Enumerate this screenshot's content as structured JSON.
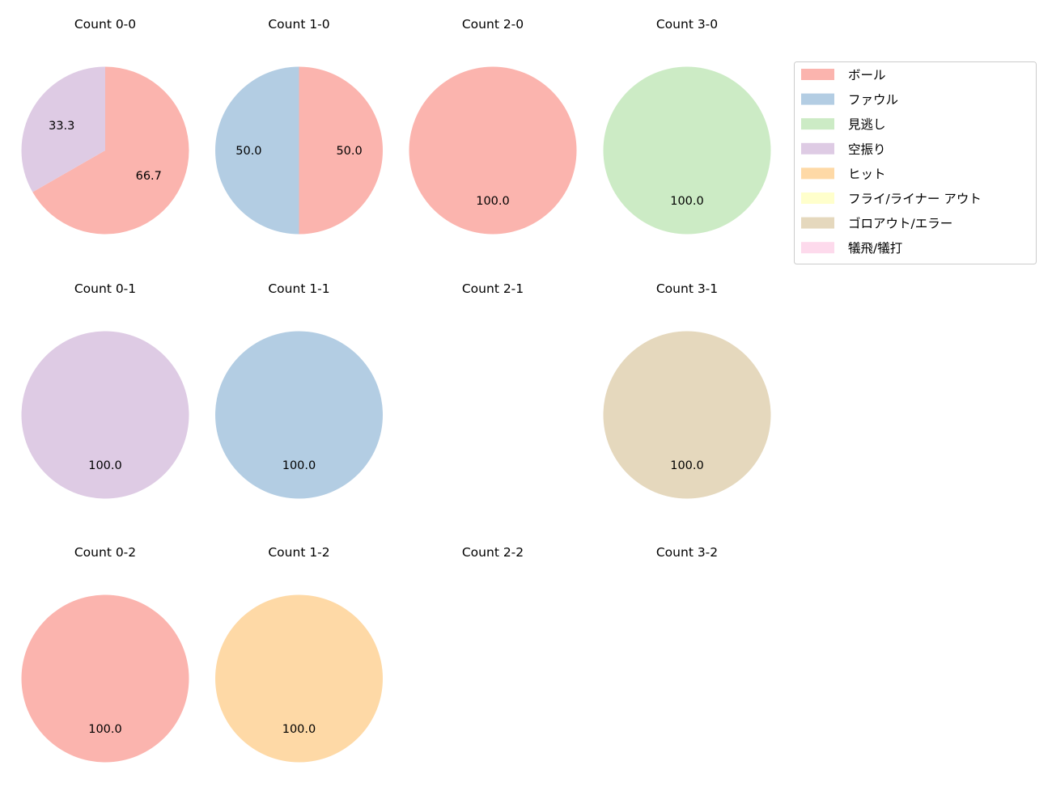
{
  "chart_data": {
    "type": "pie",
    "start_angle": 90,
    "direction": "clockwise",
    "label_format": "%.1f",
    "legend": {
      "placement": "top-right",
      "entries": [
        {
          "label": "ボール",
          "color": "#fbb4ae"
        },
        {
          "label": "ファウル",
          "color": "#b3cde3"
        },
        {
          "label": "見逃し",
          "color": "#ccebc5"
        },
        {
          "label": "空振り",
          "color": "#decbe4"
        },
        {
          "label": "ヒット",
          "color": "#fed9a6"
        },
        {
          "label": "フライ/ライナー アウト",
          "color": "#ffffcc"
        },
        {
          "label": "ゴロアウト/エラー",
          "color": "#e5d8bd"
        },
        {
          "label": "犠飛/犠打",
          "color": "#fddaec"
        }
      ]
    },
    "charts": [
      {
        "title": "Count 0-0",
        "row": 0,
        "col": 0,
        "slices": [
          {
            "category": "ボール",
            "value": 66.7
          },
          {
            "category": "空振り",
            "value": 33.3
          }
        ]
      },
      {
        "title": "Count 1-0",
        "row": 0,
        "col": 1,
        "slices": [
          {
            "category": "ボール",
            "value": 50.0
          },
          {
            "category": "ファウル",
            "value": 50.0
          }
        ]
      },
      {
        "title": "Count 2-0",
        "row": 0,
        "col": 2,
        "slices": [
          {
            "category": "ボール",
            "value": 100.0
          }
        ]
      },
      {
        "title": "Count 3-0",
        "row": 0,
        "col": 3,
        "slices": [
          {
            "category": "見逃し",
            "value": 100.0
          }
        ]
      },
      {
        "title": "Count 0-1",
        "row": 1,
        "col": 0,
        "slices": [
          {
            "category": "空振り",
            "value": 100.0
          }
        ]
      },
      {
        "title": "Count 1-1",
        "row": 1,
        "col": 1,
        "slices": [
          {
            "category": "ファウル",
            "value": 100.0
          }
        ]
      },
      {
        "title": "Count 2-1",
        "row": 1,
        "col": 2,
        "slices": []
      },
      {
        "title": "Count 3-1",
        "row": 1,
        "col": 3,
        "slices": [
          {
            "category": "ゴロアウト/エラー",
            "value": 100.0
          }
        ]
      },
      {
        "title": "Count 0-2",
        "row": 2,
        "col": 0,
        "slices": [
          {
            "category": "ボール",
            "value": 100.0
          }
        ]
      },
      {
        "title": "Count 1-2",
        "row": 2,
        "col": 1,
        "slices": [
          {
            "category": "ヒット",
            "value": 100.0
          }
        ]
      },
      {
        "title": "Count 2-2",
        "row": 2,
        "col": 2,
        "slices": []
      },
      {
        "title": "Count 3-2",
        "row": 2,
        "col": 3,
        "slices": []
      }
    ]
  }
}
